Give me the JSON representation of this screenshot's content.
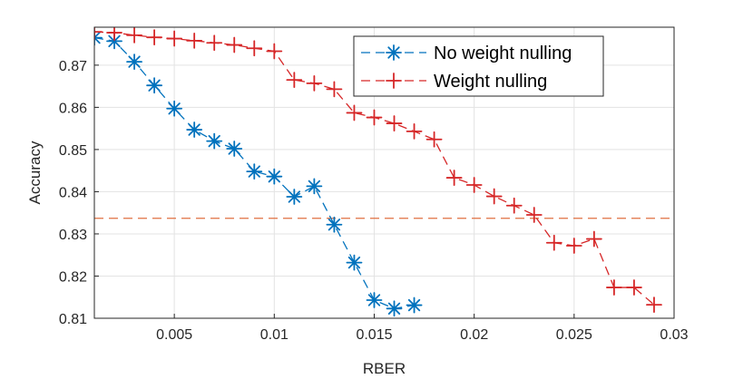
{
  "chart_data": {
    "type": "line",
    "title": "",
    "xlabel": "RBER",
    "ylabel": "Accuracy",
    "xlim": [
      0.001,
      0.03
    ],
    "ylim": [
      0.81,
      0.879
    ],
    "grid": true,
    "x_ticks": [
      0.005,
      0.01,
      0.015,
      0.02,
      0.025,
      0.03
    ],
    "x_tick_labels": [
      "0.005",
      "0.01",
      "0.015",
      "0.02",
      "0.025",
      "0.03"
    ],
    "y_ticks": [
      0.81,
      0.82,
      0.83,
      0.84,
      0.85,
      0.86,
      0.87
    ],
    "y_tick_labels": [
      "0.81",
      "0.82",
      "0.83",
      "0.84",
      "0.85",
      "0.86",
      "0.87"
    ],
    "legend_position": "top-right",
    "series": [
      {
        "name": "No weight nulling",
        "color": "#0072BD",
        "marker": "asterisk",
        "line_style": "dashed",
        "x": [
          0.001,
          0.002,
          0.003,
          0.004,
          0.005,
          0.006,
          0.007,
          0.008,
          0.009,
          0.01,
          0.011,
          0.012,
          0.013,
          0.014,
          0.015,
          0.016,
          0.017
        ],
        "y": [
          0.8765,
          0.8757,
          0.8708,
          0.8652,
          0.8597,
          0.8547,
          0.852,
          0.8502,
          0.8448,
          0.8436,
          0.8388,
          0.8413,
          0.8322,
          0.8232,
          0.8143,
          0.8123,
          0.8131
        ]
      },
      {
        "name": "Weight nulling",
        "color": "#D62728",
        "marker": "plus",
        "line_style": "dashed",
        "x": [
          0.001,
          0.002,
          0.003,
          0.004,
          0.005,
          0.006,
          0.007,
          0.008,
          0.009,
          0.01,
          0.011,
          0.012,
          0.013,
          0.014,
          0.015,
          0.016,
          0.017,
          0.018,
          0.019,
          0.02,
          0.021,
          0.022,
          0.023,
          0.024,
          0.025,
          0.026,
          0.027,
          0.028,
          0.029
        ],
        "y": [
          0.8779,
          0.8777,
          0.8771,
          0.8766,
          0.8763,
          0.8758,
          0.8753,
          0.8748,
          0.874,
          0.8733,
          0.8665,
          0.8657,
          0.8643,
          0.8587,
          0.8576,
          0.8562,
          0.8543,
          0.8524,
          0.8433,
          0.8416,
          0.8389,
          0.8367,
          0.8345,
          0.8279,
          0.8272,
          0.8288,
          0.8173,
          0.8173,
          0.8132
        ]
      }
    ],
    "reference_lines": [
      {
        "orientation": "horizontal",
        "y": 0.8337,
        "color": "#E07040",
        "line_style": "dashed"
      }
    ]
  }
}
